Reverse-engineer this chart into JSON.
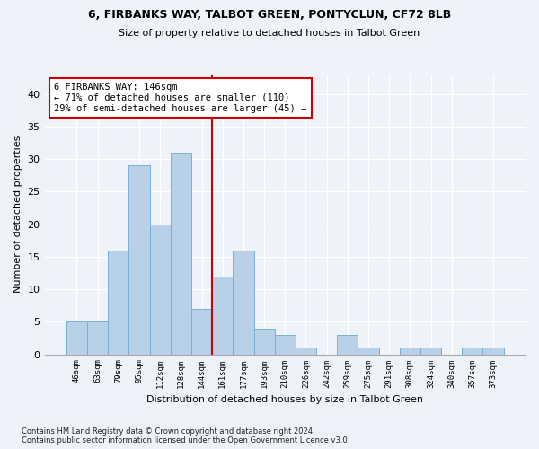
{
  "title1": "6, FIRBANKS WAY, TALBOT GREEN, PONTYCLUN, CF72 8LB",
  "title2": "Size of property relative to detached houses in Talbot Green",
  "xlabel": "Distribution of detached houses by size in Talbot Green",
  "ylabel": "Number of detached properties",
  "categories": [
    "46sqm",
    "63sqm",
    "79sqm",
    "95sqm",
    "112sqm",
    "128sqm",
    "144sqm",
    "161sqm",
    "177sqm",
    "193sqm",
    "210sqm",
    "226sqm",
    "242sqm",
    "259sqm",
    "275sqm",
    "291sqm",
    "308sqm",
    "324sqm",
    "340sqm",
    "357sqm",
    "373sqm"
  ],
  "values": [
    5,
    5,
    16,
    29,
    20,
    31,
    7,
    12,
    16,
    4,
    3,
    1,
    0,
    3,
    1,
    0,
    1,
    1,
    0,
    1,
    1
  ],
  "bar_color": "#b8d0e8",
  "bar_edge_color": "#7aafd4",
  "vline_x": 6.5,
  "vline_color": "#cc0000",
  "annotation_text": "6 FIRBANKS WAY: 146sqm\n← 71% of detached houses are smaller (110)\n29% of semi-detached houses are larger (45) →",
  "annotation_box_color": "#ffffff",
  "annotation_box_edge": "#cc0000",
  "ylim": [
    0,
    43
  ],
  "yticks": [
    0,
    5,
    10,
    15,
    20,
    25,
    30,
    35,
    40
  ],
  "footer": "Contains HM Land Registry data © Crown copyright and database right 2024.\nContains public sector information licensed under the Open Government Licence v3.0.",
  "background_color": "#eef2f9",
  "plot_bg_color": "#eef2f9",
  "title_fontsize": 9,
  "subtitle_fontsize": 8
}
